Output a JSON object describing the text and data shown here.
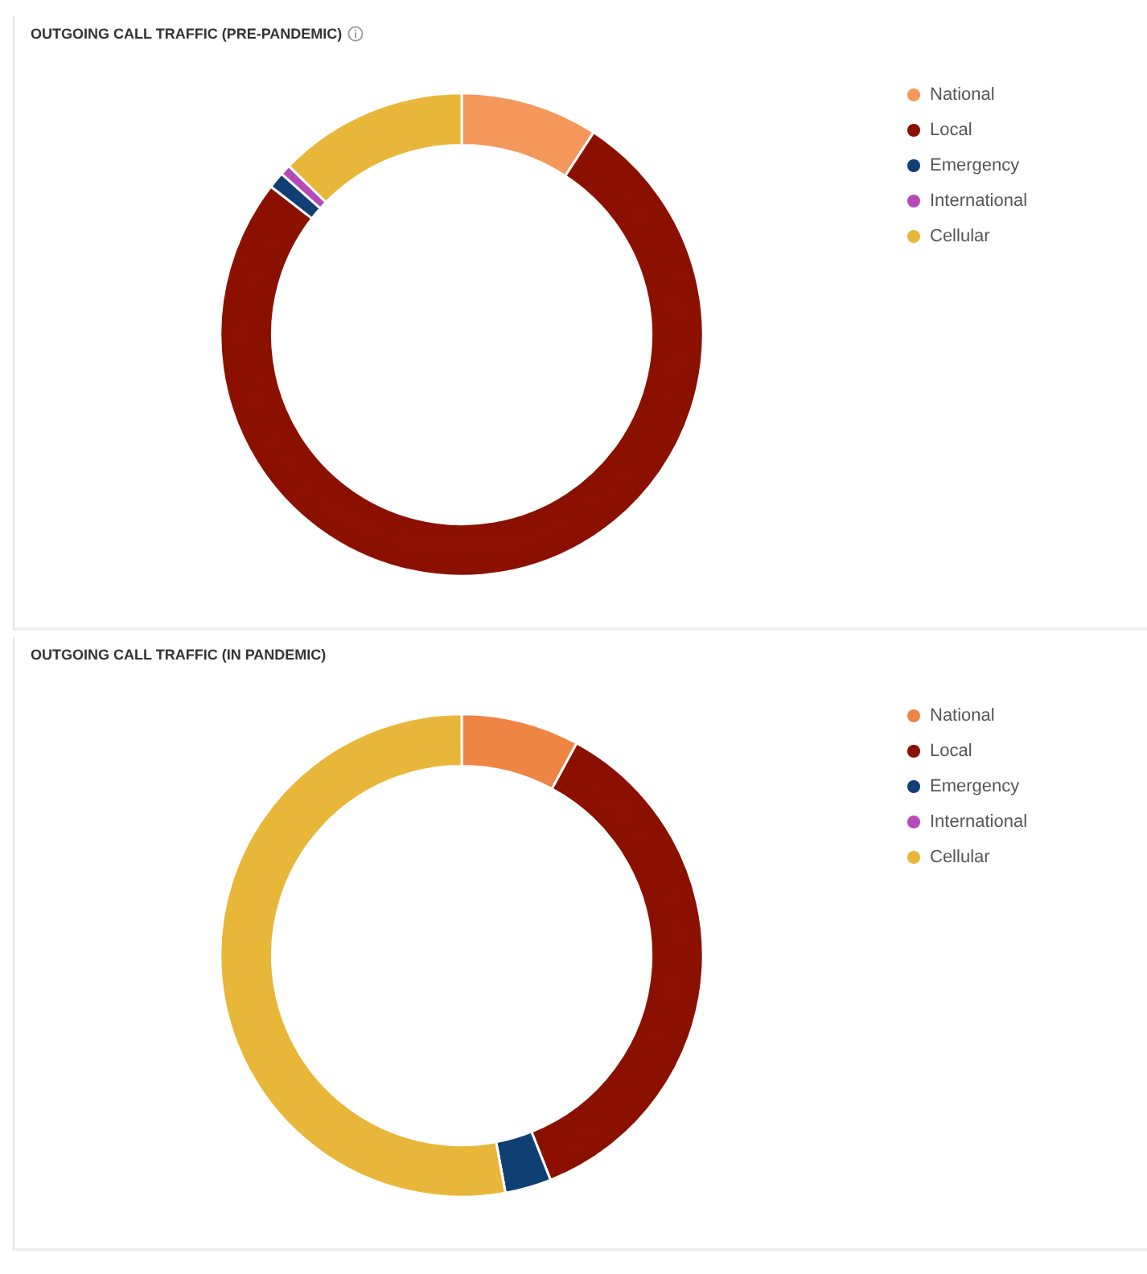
{
  "chart_data": [
    {
      "type": "donut",
      "title": "OUTGOING CALL TRAFFIC (PRE-PANDEMIC)",
      "categories": [
        "National",
        "Local",
        "Emergency",
        "International",
        "Cellular"
      ],
      "values": [
        9.2,
        76.3,
        1.1,
        0.7,
        12.7
      ],
      "colors": [
        "#f4975a",
        "#8b1000",
        "#0f3f73",
        "#b44bb8",
        "#e8b73a"
      ],
      "legend": "top right"
    },
    {
      "type": "donut",
      "title": "OUTGOING CALL TRAFFIC (IN PANDEMIC)",
      "categories": [
        "National",
        "Local",
        "Emergency",
        "International",
        "Cellular"
      ],
      "values": [
        7.9,
        36.1,
        3.1,
        0,
        52.9
      ],
      "colors": [
        "#ee8544",
        "#8b1000",
        "#0f3f73",
        "#b44bb8",
        "#e8b73a"
      ],
      "legend": "top right"
    }
  ]
}
